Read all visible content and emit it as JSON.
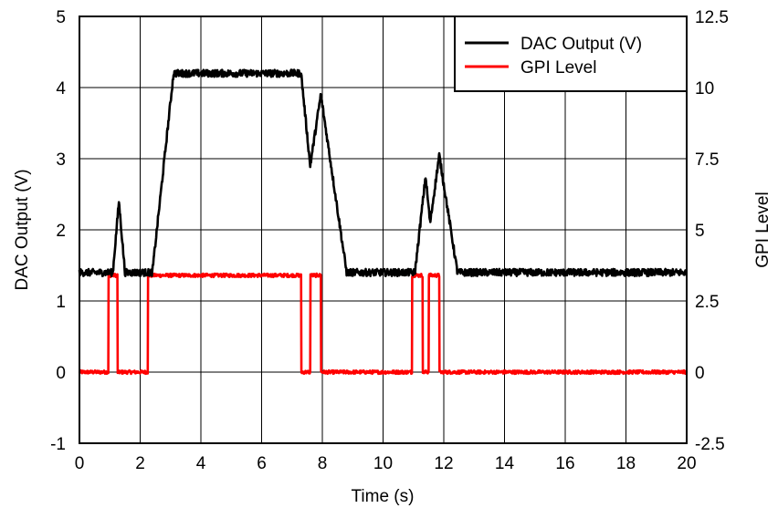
{
  "chart_data": {
    "type": "line",
    "xlabel": "Time (s)",
    "ylabel_left": "DAC Output (V)",
    "ylabel_right": "GPI Level",
    "xlim": [
      0,
      20
    ],
    "ylim_left": [
      -1,
      5
    ],
    "ylim_right": [
      -2.5,
      12.5
    ],
    "x_ticks": [
      "0",
      "2",
      "4",
      "6",
      "8",
      "10",
      "12",
      "14",
      "16",
      "18",
      "20"
    ],
    "y_left_ticks": [
      "-1",
      "0",
      "1",
      "2",
      "3",
      "4",
      "5"
    ],
    "y_right_ticks": [
      "-2.5",
      "0",
      "2.5",
      "5",
      "7.5",
      "10",
      "12.5"
    ],
    "grid": true,
    "legend_position": "top-right",
    "series": [
      {
        "name": "DAC Output (V)",
        "color": "#000000",
        "axis": "left",
        "noise": 0.05,
        "x": [
          0,
          1.1,
          1.3,
          1.5,
          1.55,
          2.4,
          3.1,
          7.3,
          7.6,
          7.95,
          8.8,
          11.05,
          11.4,
          11.55,
          11.85,
          12.45,
          20
        ],
        "values": [
          1.4,
          1.4,
          2.4,
          1.4,
          1.4,
          1.4,
          4.2,
          4.2,
          2.9,
          3.9,
          1.4,
          1.4,
          2.75,
          2.1,
          3.05,
          1.4,
          1.4
        ]
      },
      {
        "name": "GPI Level",
        "color": "#ff0000",
        "axis": "right",
        "noise": 0.06,
        "x": [
          0,
          0.95,
          0.96,
          1.25,
          1.26,
          2.25,
          2.26,
          7.3,
          7.31,
          7.6,
          7.61,
          7.95,
          7.96,
          10.95,
          10.96,
          11.3,
          11.31,
          11.5,
          11.51,
          11.85,
          11.86,
          20
        ],
        "values": [
          0,
          0,
          3.4,
          3.4,
          0,
          0,
          3.4,
          3.4,
          0,
          0,
          3.4,
          3.4,
          0,
          0,
          3.4,
          3.4,
          0,
          0,
          3.4,
          3.4,
          0,
          0
        ]
      }
    ]
  }
}
